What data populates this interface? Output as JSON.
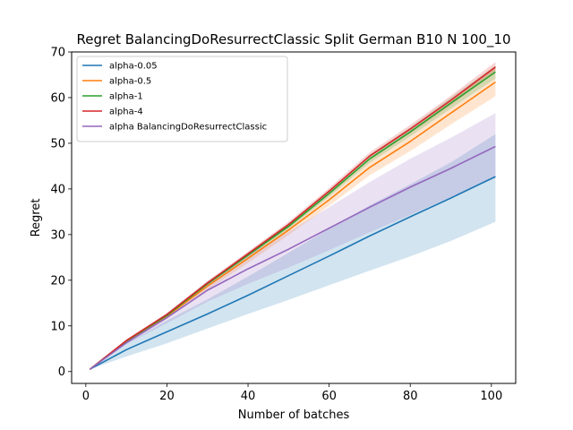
{
  "chart_data": {
    "type": "line",
    "title": "Regret BalancingDoResurrectClassic Split German B10 N 100_10",
    "xlabel": "Number of batches",
    "ylabel": "Regret",
    "xlim": [
      -3.5,
      106
    ],
    "ylim": [
      -2.6,
      70
    ],
    "xticks": [
      0,
      20,
      40,
      60,
      80,
      100
    ],
    "yticks": [
      0,
      10,
      20,
      30,
      40,
      50,
      60,
      70
    ],
    "legend_position": "top-left",
    "grid": false,
    "x": [
      1,
      10,
      20,
      30,
      40,
      50,
      60,
      70,
      80,
      90,
      101
    ],
    "series": [
      {
        "name": "alpha-0.05",
        "color": "#1f77b4",
        "values": [
          0.5,
          4.8,
          8.7,
          12.6,
          16.7,
          21.0,
          25.3,
          29.7,
          33.9,
          38.0,
          42.7
        ],
        "lower": [
          0.5,
          3.3,
          6.2,
          9.4,
          12.6,
          15.7,
          18.9,
          22.1,
          25.2,
          28.6,
          32.8
        ],
        "upper": [
          0.5,
          6.2,
          11.2,
          15.8,
          20.8,
          26.0,
          31.3,
          36.4,
          41.0,
          45.8,
          52.0
        ]
      },
      {
        "name": "alpha-0.5",
        "color": "#ff7f0e",
        "values": [
          0.5,
          6.6,
          12.1,
          18.7,
          24.8,
          31.0,
          37.6,
          44.7,
          50.4,
          56.6,
          63.4
        ],
        "lower": [
          0.5,
          6.3,
          11.6,
          17.9,
          23.8,
          29.9,
          36.3,
          43.0,
          48.3,
          54.1,
          60.3
        ],
        "upper": [
          0.5,
          6.9,
          12.6,
          19.5,
          25.8,
          32.2,
          39.0,
          46.5,
          52.6,
          59.2,
          66.5
        ]
      },
      {
        "name": "alpha-1",
        "color": "#2ca02c",
        "values": [
          0.5,
          6.7,
          12.3,
          19.2,
          25.5,
          31.8,
          39.0,
          46.6,
          52.5,
          58.8,
          65.6
        ],
        "lower": [
          0.5,
          6.5,
          12.0,
          18.8,
          25.0,
          31.2,
          38.3,
          45.7,
          51.5,
          57.6,
          64.2
        ],
        "upper": [
          0.5,
          6.9,
          12.6,
          19.6,
          26.0,
          32.4,
          39.7,
          47.5,
          53.5,
          60.0,
          67.0
        ]
      },
      {
        "name": "alpha-4",
        "color": "#d62728",
        "values": [
          0.5,
          6.8,
          12.5,
          19.4,
          25.8,
          32.2,
          39.5,
          47.2,
          53.1,
          59.4,
          66.7
        ],
        "lower": [
          0.5,
          6.6,
          12.2,
          19.0,
          25.3,
          31.6,
          38.8,
          46.4,
          52.2,
          58.4,
          65.6
        ],
        "upper": [
          0.5,
          7.0,
          12.8,
          19.8,
          26.3,
          32.8,
          40.2,
          48.0,
          54.0,
          60.4,
          67.8
        ]
      },
      {
        "name": "alpha BalancingDoResurrectClassic",
        "color": "#9467bd",
        "values": [
          0.5,
          6.3,
          11.8,
          17.8,
          22.5,
          26.8,
          31.4,
          36.0,
          40.4,
          44.5,
          49.3
        ],
        "lower": [
          0.5,
          6.0,
          10.6,
          15.3,
          19.2,
          22.8,
          26.6,
          30.5,
          34.3,
          38.2,
          42.4
        ],
        "upper": [
          0.5,
          6.6,
          12.8,
          19.8,
          25.6,
          30.6,
          36.0,
          41.5,
          46.6,
          51.2,
          56.6
        ]
      }
    ]
  }
}
